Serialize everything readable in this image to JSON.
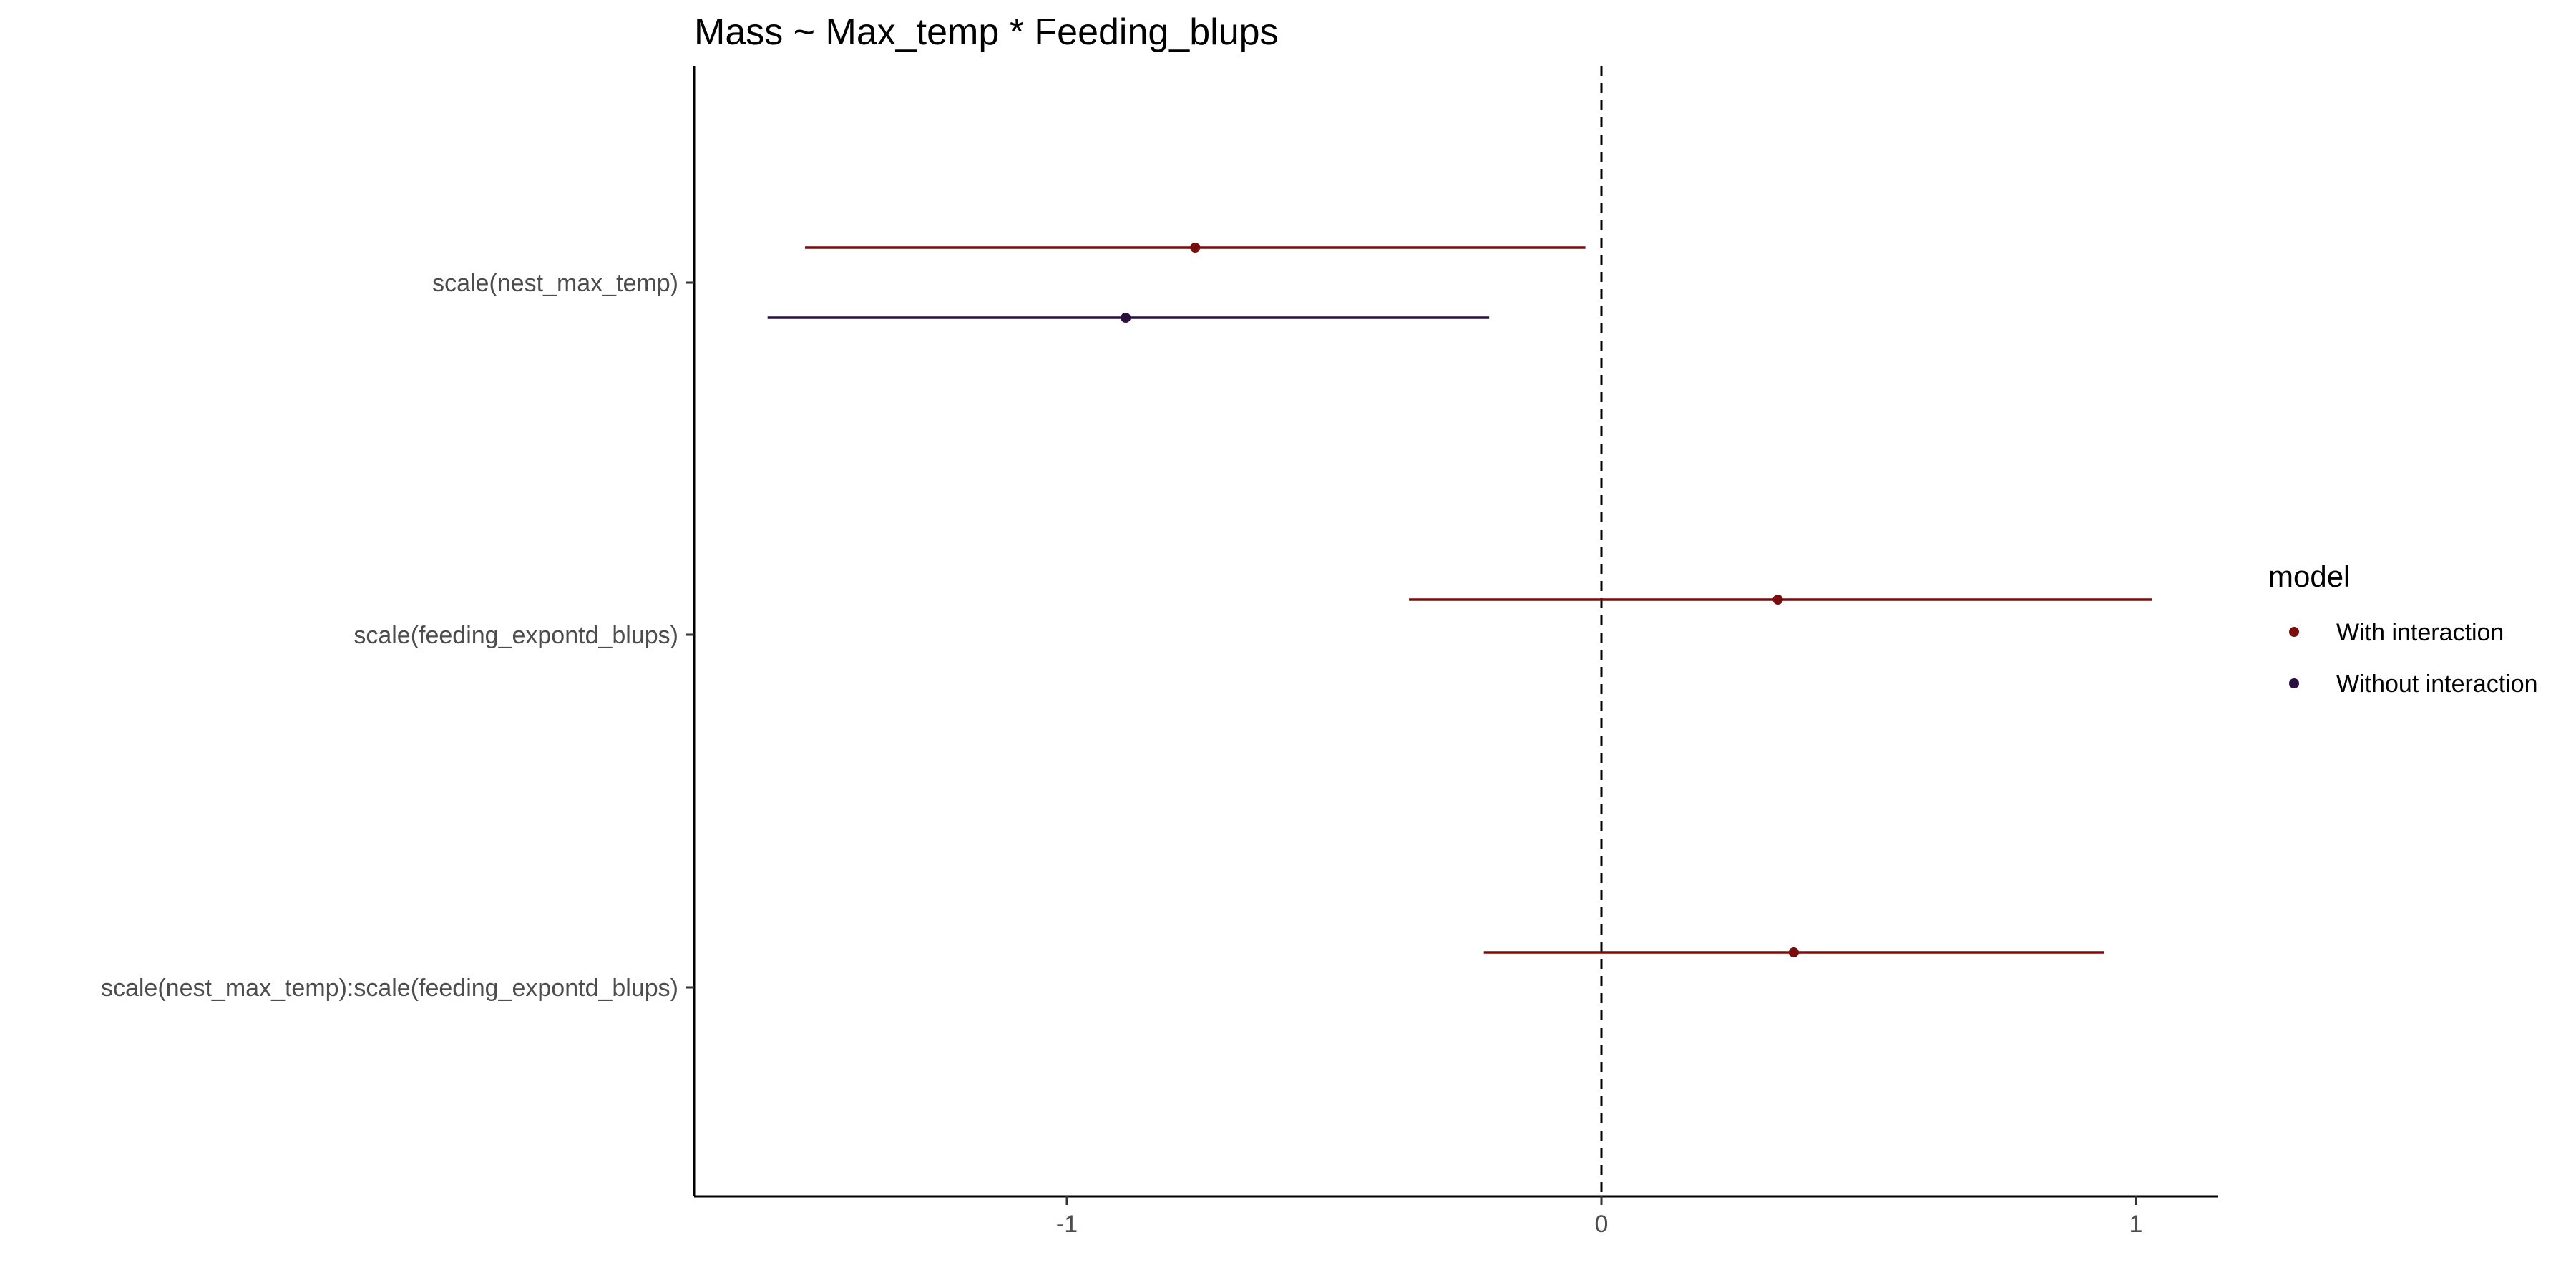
{
  "chart_data": {
    "type": "scatter",
    "subtype": "coefficient-plot",
    "title": "Mass ~ Max_temp * Feeding_blups",
    "terms": [
      "scale(nest_max_temp)",
      "scale(feeding_expontd_blups)",
      "scale(nest_max_temp):scale(feeding_expontd_blups)"
    ],
    "x_ticks": [
      -1,
      0,
      1
    ],
    "x_tick_labels": [
      "-1",
      "0",
      "1"
    ],
    "xlim": [
      -1.69,
      1.16
    ],
    "reference_line": 0,
    "legend": {
      "title": "model",
      "position": "right",
      "entries": [
        "With interaction",
        "Without interaction"
      ]
    },
    "series": [
      {
        "name": "With interaction",
        "color": "#7a0c0c",
        "points": [
          {
            "term": "scale(nest_max_temp)",
            "estimate": -0.76,
            "low": -1.49,
            "high": -0.03
          },
          {
            "term": "scale(feeding_expontd_blups)",
            "estimate": 0.33,
            "low": -0.36,
            "high": 1.03
          },
          {
            "term": "scale(nest_max_temp):scale(feeding_expontd_blups)",
            "estimate": 0.36,
            "low": -0.22,
            "high": 0.94
          }
        ]
      },
      {
        "name": "Without interaction",
        "color": "#2a1040",
        "points": [
          {
            "term": "scale(nest_max_temp)",
            "estimate": -0.89,
            "low": -1.56,
            "high": -0.21
          }
        ]
      }
    ],
    "grid": false
  }
}
